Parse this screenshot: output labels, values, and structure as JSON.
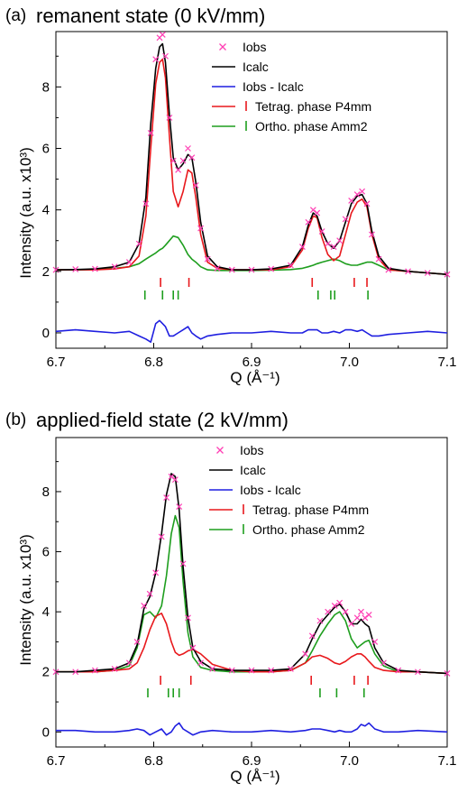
{
  "chart_data": [
    {
      "type": "line",
      "panel_letter": "(a)",
      "title": "remanent state (0 kV/mm)",
      "xlabel": "Q (Å⁻¹)",
      "ylabel": "Intensity (a.u. x10³)",
      "xlim": [
        6.7,
        7.1
      ],
      "ylim": [
        -0.5,
        9.8
      ],
      "xticks": [
        "6.7",
        "6.8",
        "6.9",
        "7.0",
        "7.1"
      ],
      "yticks": [
        "0",
        "2",
        "4",
        "6",
        "8"
      ],
      "grid": false,
      "legend_position": "top-right",
      "legend": [
        "Iobs",
        "Icalc",
        "Iobs - Icalc",
        "Tetrag. phase P4mm",
        "Ortho. phase Amm2"
      ],
      "series": [
        {
          "name": "Iobs",
          "color": "#ff3fb4",
          "marker": "x",
          "x": [
            6.7,
            6.72,
            6.74,
            6.76,
            6.775,
            6.785,
            6.792,
            6.797,
            6.802,
            6.806,
            6.809,
            6.812,
            6.816,
            6.82,
            6.825,
            6.83,
            6.835,
            6.839,
            6.843,
            6.848,
            6.855,
            6.865,
            6.88,
            6.9,
            6.92,
            6.94,
            6.952,
            6.958,
            6.963,
            6.967,
            6.972,
            6.978,
            6.984,
            6.99,
            6.996,
            7.002,
            7.008,
            7.013,
            7.018,
            7.023,
            7.03,
            7.04,
            7.06,
            7.08,
            7.1
          ],
          "y": [
            2.05,
            2.07,
            2.08,
            2.15,
            2.3,
            2.9,
            4.2,
            6.5,
            8.9,
            9.6,
            9.7,
            9.0,
            7.0,
            5.6,
            5.3,
            5.6,
            6.0,
            5.7,
            4.8,
            3.4,
            2.4,
            2.1,
            2.05,
            2.05,
            2.08,
            2.2,
            2.8,
            3.6,
            4.0,
            3.9,
            3.3,
            2.9,
            2.8,
            3.0,
            3.7,
            4.3,
            4.5,
            4.6,
            4.2,
            3.2,
            2.4,
            2.05,
            2.0,
            1.95,
            1.9
          ]
        },
        {
          "name": "Icalc",
          "color": "#000000",
          "x": [
            6.7,
            6.72,
            6.74,
            6.76,
            6.775,
            6.785,
            6.792,
            6.797,
            6.802,
            6.806,
            6.809,
            6.812,
            6.816,
            6.82,
            6.825,
            6.83,
            6.835,
            6.839,
            6.843,
            6.848,
            6.855,
            6.865,
            6.88,
            6.9,
            6.92,
            6.94,
            6.952,
            6.958,
            6.963,
            6.967,
            6.972,
            6.978,
            6.984,
            6.99,
            6.996,
            7.002,
            7.008,
            7.013,
            7.018,
            7.023,
            7.03,
            7.04,
            7.06,
            7.08,
            7.1
          ],
          "y": [
            2.05,
            2.06,
            2.08,
            2.15,
            2.3,
            2.9,
            4.4,
            6.8,
            8.6,
            9.3,
            9.4,
            8.8,
            7.1,
            5.7,
            5.3,
            5.5,
            5.8,
            5.7,
            4.9,
            3.6,
            2.5,
            2.15,
            2.05,
            2.05,
            2.08,
            2.2,
            2.8,
            3.5,
            3.9,
            3.8,
            3.3,
            2.9,
            2.75,
            3.0,
            3.6,
            4.2,
            4.45,
            4.5,
            4.2,
            3.3,
            2.5,
            2.1,
            2.0,
            1.95,
            1.9
          ]
        },
        {
          "name": "Iobs - Icalc",
          "color": "#1f1fe0",
          "x": [
            6.7,
            6.72,
            6.74,
            6.76,
            6.775,
            6.785,
            6.792,
            6.797,
            6.802,
            6.806,
            6.809,
            6.812,
            6.816,
            6.82,
            6.825,
            6.83,
            6.835,
            6.839,
            6.843,
            6.848,
            6.855,
            6.865,
            6.88,
            6.9,
            6.92,
            6.94,
            6.952,
            6.958,
            6.963,
            6.967,
            6.972,
            6.978,
            6.984,
            6.99,
            6.996,
            7.002,
            7.008,
            7.013,
            7.018,
            7.023,
            7.03,
            7.04,
            7.06,
            7.08,
            7.1
          ],
          "y": [
            0.05,
            0.1,
            0.05,
            0.0,
            0.05,
            -0.1,
            -0.2,
            -0.3,
            0.3,
            0.4,
            0.3,
            0.2,
            -0.1,
            -0.1,
            0.0,
            0.1,
            0.2,
            0.0,
            -0.1,
            -0.2,
            -0.1,
            -0.05,
            0.0,
            0.0,
            0.05,
            0.0,
            0.0,
            0.1,
            0.1,
            0.1,
            0.0,
            0.0,
            0.05,
            0.0,
            0.1,
            0.1,
            0.05,
            0.1,
            0.0,
            -0.1,
            -0.1,
            -0.05,
            0.0,
            0.05,
            0.0
          ]
        },
        {
          "name": "Tetrag. phase P4mm",
          "color": "#e8181c",
          "x": [
            6.7,
            6.72,
            6.74,
            6.76,
            6.775,
            6.785,
            6.792,
            6.797,
            6.802,
            6.806,
            6.809,
            6.812,
            6.816,
            6.82,
            6.825,
            6.83,
            6.835,
            6.839,
            6.843,
            6.848,
            6.855,
            6.865,
            6.88,
            6.9,
            6.92,
            6.94,
            6.952,
            6.958,
            6.963,
            6.967,
            6.972,
            6.978,
            6.984,
            6.99,
            6.996,
            7.002,
            7.008,
            7.013,
            7.018,
            7.023,
            7.03,
            7.04,
            7.06,
            7.08,
            7.1
          ],
          "y": [
            2.05,
            2.05,
            2.05,
            2.08,
            2.15,
            2.5,
            3.8,
            6.0,
            8.1,
            8.8,
            8.9,
            8.3,
            6.4,
            4.6,
            4.1,
            4.6,
            5.3,
            5.2,
            4.4,
            3.2,
            2.3,
            2.1,
            2.05,
            2.05,
            2.05,
            2.15,
            2.7,
            3.4,
            3.8,
            3.75,
            3.1,
            2.55,
            2.35,
            2.5,
            3.2,
            3.9,
            4.25,
            4.35,
            4.1,
            3.2,
            2.4,
            2.05,
            2.0,
            1.95,
            1.9
          ]
        },
        {
          "name": "Ortho. phase Amm2",
          "color": "#1e9e1e",
          "x": [
            6.7,
            6.72,
            6.74,
            6.76,
            6.775,
            6.785,
            6.792,
            6.797,
            6.802,
            6.806,
            6.809,
            6.812,
            6.816,
            6.82,
            6.825,
            6.83,
            6.835,
            6.839,
            6.843,
            6.848,
            6.855,
            6.865,
            6.88,
            6.9,
            6.92,
            6.94,
            6.952,
            6.958,
            6.963,
            6.967,
            6.972,
            6.978,
            6.984,
            6.99,
            6.996,
            7.002,
            7.008,
            7.013,
            7.018,
            7.023,
            7.03,
            7.04,
            7.06,
            7.08,
            7.1
          ],
          "y": [
            2.05,
            2.05,
            2.06,
            2.1,
            2.15,
            2.25,
            2.4,
            2.5,
            2.6,
            2.7,
            2.75,
            2.85,
            3.0,
            3.15,
            3.1,
            2.85,
            2.55,
            2.4,
            2.3,
            2.15,
            2.05,
            2.03,
            2.03,
            2.03,
            2.04,
            2.06,
            2.1,
            2.15,
            2.2,
            2.25,
            2.3,
            2.35,
            2.4,
            2.35,
            2.25,
            2.2,
            2.2,
            2.25,
            2.3,
            2.3,
            2.2,
            2.05,
            2.0,
            1.95,
            1.9
          ]
        }
      ],
      "reflection_ticks": [
        {
          "name": "Tetrag. phase P4mm",
          "color": "#e8181c",
          "x": [
            6.807,
            6.836,
            6.962,
            7.005,
            7.018
          ]
        },
        {
          "name": "Ortho. phase Amm2",
          "color": "#1e9e1e",
          "x": [
            6.791,
            6.809,
            6.82,
            6.825,
            6.968,
            6.981,
            6.985,
            7.019
          ]
        }
      ]
    },
    {
      "type": "line",
      "panel_letter": "(b)",
      "title": "applied-field state (2 kV/mm)",
      "xlabel": "Q (Å⁻¹)",
      "ylabel": "Intensity (a.u. x10³)",
      "xlim": [
        6.7,
        7.1
      ],
      "ylim": [
        -0.5,
        9.8
      ],
      "xticks": [
        "6.7",
        "6.8",
        "6.9",
        "7.0",
        "7.1"
      ],
      "yticks": [
        "0",
        "2",
        "4",
        "6",
        "8"
      ],
      "grid": false,
      "legend_position": "top-right",
      "legend": [
        "Iobs",
        "Icalc",
        "Iobs - Icalc",
        "Tetrag. phase P4mm",
        "Ortho. phase Amm2"
      ],
      "series": [
        {
          "name": "Iobs",
          "color": "#ff3fb4",
          "marker": "x",
          "x": [
            6.7,
            6.72,
            6.74,
            6.76,
            6.775,
            6.783,
            6.79,
            6.796,
            6.802,
            6.808,
            6.813,
            6.818,
            6.822,
            6.826,
            6.83,
            6.835,
            6.84,
            6.848,
            6.86,
            6.88,
            6.9,
            6.92,
            6.94,
            6.955,
            6.962,
            6.97,
            6.978,
            6.985,
            6.99,
            6.996,
            7.002,
            7.008,
            7.012,
            7.016,
            7.02,
            7.026,
            7.035,
            7.05,
            7.07,
            7.1
          ],
          "y": [
            2.0,
            2.0,
            2.05,
            2.1,
            2.3,
            3.0,
            4.2,
            4.6,
            5.3,
            6.5,
            7.8,
            8.5,
            8.4,
            7.5,
            5.6,
            3.8,
            2.8,
            2.3,
            2.1,
            2.05,
            2.05,
            2.05,
            2.1,
            2.6,
            3.2,
            3.7,
            4.0,
            4.2,
            4.3,
            4.0,
            3.6,
            3.8,
            4.0,
            3.8,
            3.9,
            3.0,
            2.3,
            2.05,
            2.0,
            1.95
          ]
        },
        {
          "name": "Icalc",
          "color": "#000000",
          "x": [
            6.7,
            6.72,
            6.74,
            6.76,
            6.775,
            6.783,
            6.79,
            6.796,
            6.802,
            6.808,
            6.813,
            6.818,
            6.822,
            6.826,
            6.83,
            6.835,
            6.84,
            6.848,
            6.86,
            6.88,
            6.9,
            6.92,
            6.94,
            6.955,
            6.962,
            6.97,
            6.978,
            6.985,
            6.99,
            6.996,
            7.002,
            7.008,
            7.012,
            7.016,
            7.02,
            7.026,
            7.035,
            7.05,
            7.07,
            7.1
          ],
          "y": [
            2.0,
            2.0,
            2.05,
            2.1,
            2.3,
            2.9,
            4.1,
            4.5,
            5.3,
            6.6,
            7.9,
            8.6,
            8.5,
            7.4,
            5.5,
            3.8,
            2.8,
            2.35,
            2.1,
            2.05,
            2.05,
            2.05,
            2.1,
            2.6,
            3.1,
            3.6,
            3.9,
            4.15,
            4.25,
            4.0,
            3.6,
            3.6,
            3.75,
            3.6,
            3.5,
            2.8,
            2.3,
            2.05,
            2.0,
            1.95
          ]
        },
        {
          "name": "Iobs - Icalc",
          "color": "#1f1fe0",
          "x": [
            6.7,
            6.72,
            6.74,
            6.76,
            6.775,
            6.783,
            6.79,
            6.796,
            6.802,
            6.808,
            6.813,
            6.818,
            6.822,
            6.826,
            6.83,
            6.835,
            6.84,
            6.848,
            6.86,
            6.88,
            6.9,
            6.92,
            6.94,
            6.955,
            6.962,
            6.97,
            6.978,
            6.985,
            6.99,
            6.996,
            7.002,
            7.008,
            7.012,
            7.016,
            7.02,
            7.026,
            7.035,
            7.05,
            7.07,
            7.1
          ],
          "y": [
            0.05,
            0.05,
            0.0,
            0.0,
            0.05,
            0.1,
            0.05,
            -0.1,
            0.0,
            0.1,
            -0.1,
            0.0,
            0.2,
            0.3,
            0.1,
            0.0,
            -0.1,
            0.0,
            0.05,
            0.0,
            0.0,
            0.05,
            0.0,
            0.05,
            0.1,
            0.1,
            0.05,
            0.0,
            0.05,
            0.0,
            0.0,
            0.1,
            0.25,
            0.2,
            0.3,
            0.1,
            0.0,
            0.0,
            0.05,
            0.0
          ]
        },
        {
          "name": "Tetrag. phase P4mm",
          "color": "#e8181c",
          "x": [
            6.7,
            6.72,
            6.74,
            6.76,
            6.775,
            6.783,
            6.79,
            6.796,
            6.802,
            6.808,
            6.813,
            6.818,
            6.822,
            6.826,
            6.83,
            6.835,
            6.84,
            6.848,
            6.86,
            6.88,
            6.9,
            6.92,
            6.94,
            6.955,
            6.962,
            6.97,
            6.978,
            6.985,
            6.99,
            6.996,
            7.002,
            7.008,
            7.012,
            7.016,
            7.02,
            7.026,
            7.035,
            7.05,
            7.07,
            7.1
          ],
          "y": [
            2.0,
            2.0,
            2.0,
            2.05,
            2.1,
            2.3,
            2.8,
            3.4,
            3.85,
            3.95,
            3.6,
            3.0,
            2.65,
            2.55,
            2.6,
            2.7,
            2.75,
            2.6,
            2.25,
            2.05,
            2.0,
            2.0,
            2.05,
            2.3,
            2.5,
            2.55,
            2.45,
            2.3,
            2.25,
            2.35,
            2.5,
            2.6,
            2.6,
            2.5,
            2.35,
            2.15,
            2.05,
            2.0,
            2.0,
            1.95
          ]
        },
        {
          "name": "Ortho. phase Amm2",
          "color": "#1e9e1e",
          "x": [
            6.7,
            6.72,
            6.74,
            6.76,
            6.775,
            6.783,
            6.79,
            6.796,
            6.802,
            6.808,
            6.813,
            6.818,
            6.822,
            6.826,
            6.83,
            6.835,
            6.84,
            6.848,
            6.86,
            6.88,
            6.9,
            6.92,
            6.94,
            6.955,
            6.962,
            6.97,
            6.978,
            6.985,
            6.99,
            6.996,
            7.002,
            7.008,
            7.012,
            7.016,
            7.02,
            7.026,
            7.035,
            7.05,
            7.07,
            7.1
          ],
          "y": [
            2.0,
            2.0,
            2.0,
            2.05,
            2.2,
            2.8,
            3.9,
            4.0,
            3.8,
            4.2,
            5.2,
            6.6,
            7.2,
            6.8,
            5.0,
            3.3,
            2.5,
            2.15,
            2.05,
            2.0,
            2.0,
            2.0,
            2.05,
            2.3,
            2.7,
            3.2,
            3.6,
            3.9,
            4.0,
            3.7,
            3.1,
            2.8,
            2.9,
            3.0,
            3.05,
            2.6,
            2.2,
            2.0,
            2.0,
            1.95
          ]
        }
      ],
      "reflection_ticks": [
        {
          "name": "Tetrag. phase P4mm",
          "color": "#e8181c",
          "x": [
            6.807,
            6.838,
            6.961,
            7.005,
            7.019
          ]
        },
        {
          "name": "Ortho. phase Amm2",
          "color": "#1e9e1e",
          "x": [
            6.794,
            6.815,
            6.82,
            6.826,
            6.97,
            6.987,
            7.015
          ]
        }
      ]
    }
  ]
}
